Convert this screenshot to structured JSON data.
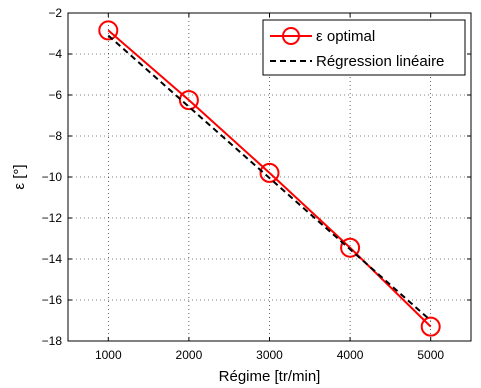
{
  "chart_data": {
    "type": "line",
    "xlabel": "Régime [tr/min]",
    "ylabel": "ε [°]",
    "xlim": [
      500,
      5500
    ],
    "ylim": [
      -18,
      -2
    ],
    "xticks": [
      1000,
      2000,
      3000,
      4000,
      5000
    ],
    "yticks": [
      -18,
      -16,
      -14,
      -12,
      -10,
      -8,
      -6,
      -4,
      -2
    ],
    "grid": true,
    "legend_position": "top-right",
    "series": [
      {
        "name": "ε optimal",
        "color": "#ff0000",
        "style": "solid",
        "marker": "circle",
        "x": [
          1000,
          2000,
          3000,
          4000,
          5000
        ],
        "y": [
          -2.85,
          -6.25,
          -9.8,
          -13.45,
          -17.3
        ]
      },
      {
        "name": "Régression linéaire",
        "color": "#000000",
        "style": "dashed",
        "marker": "none",
        "x": [
          1000,
          5000
        ],
        "y": [
          -3.1,
          -17.0
        ]
      }
    ]
  }
}
